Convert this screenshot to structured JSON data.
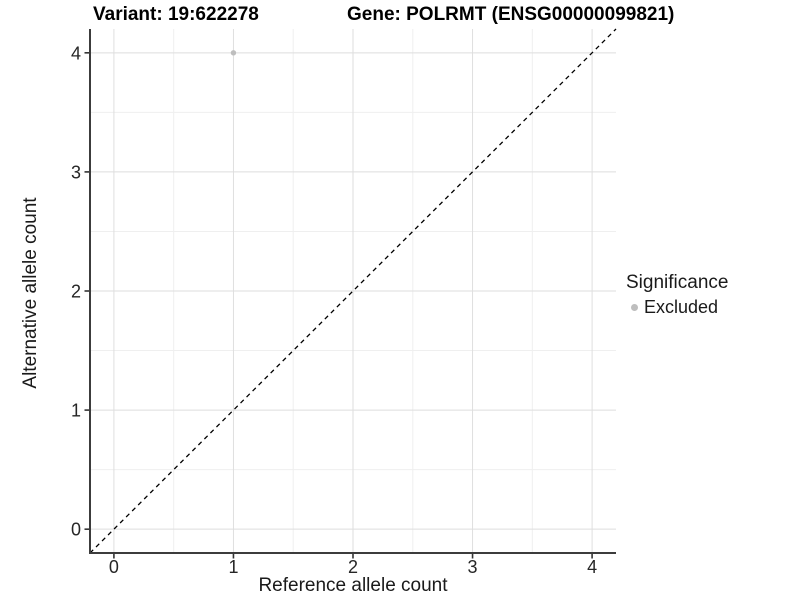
{
  "chart_data": {
    "type": "scatter",
    "titles": [
      "Variant: 19:622278",
      "Gene: POLRMT (ENSG00000099821)"
    ],
    "xlabel": "Reference allele count",
    "ylabel": "Alternative allele count",
    "xlim": [
      -0.2,
      4.2
    ],
    "ylim": [
      -0.2,
      4.2
    ],
    "x_ticks": [
      0,
      1,
      2,
      3,
      4
    ],
    "y_ticks": [
      0,
      1,
      2,
      3,
      4
    ],
    "minor_ticks": [
      0.5,
      1.5,
      2.5,
      3.5
    ],
    "grid": true,
    "points": [
      {
        "x": 1,
        "y": 4,
        "significance": "Excluded"
      }
    ],
    "reference_line": {
      "slope": 1,
      "intercept": 0,
      "style": "dashed",
      "color": "#000000"
    },
    "legend": {
      "title": "Significance",
      "position": "right",
      "entries": [
        {
          "label": "Excluded",
          "color": "#bebebe"
        }
      ]
    },
    "colors": {
      "point": "#bebebe",
      "grid_major": "#dedede",
      "grid_minor": "#efefef",
      "axis_line": "#3c3c3c",
      "tick": "#333333",
      "tick_label": "#262626"
    }
  }
}
